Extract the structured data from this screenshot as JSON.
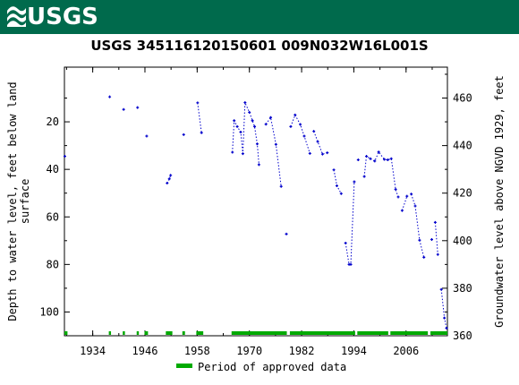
{
  "header": {
    "logo_text": "USGS",
    "background_color": "#006a4c"
  },
  "chart_data": {
    "type": "scatter",
    "title": "USGS 345116120150601 009N032W16L001S",
    "ylabel_left": "Depth to water level, feet below land surface",
    "ylabel_left_lines": [
      "Depth to water level, feet below land",
      "surface"
    ],
    "ylabel_right": "Groundwater level above NGVD 1929, feet",
    "xlim": [
      1927.5,
      2015.5
    ],
    "ylim_left": [
      110,
      -3
    ],
    "ylim_right": [
      360,
      473
    ],
    "x_ticks": [
      1934,
      1946,
      1958,
      1970,
      1982,
      1994,
      2006
    ],
    "x_tick_labels": [
      "1934",
      "1946",
      "1958",
      "1970",
      "1982",
      "1994",
      "2006"
    ],
    "y_left_ticks": [
      20,
      40,
      60,
      80,
      100
    ],
    "y_left_tick_labels": [
      "20",
      "40",
      "60",
      "80",
      "100"
    ],
    "y_right_ticks": [
      360,
      380,
      400,
      420,
      440,
      460
    ],
    "y_right_tick_labels": [
      "360",
      "380",
      "400",
      "420",
      "440",
      "460"
    ],
    "series": [
      {
        "color": "#0000cc",
        "points": [
          [
            1927.6,
            34.5
          ],
          [
            1937.9,
            9.5
          ],
          [
            1941.1,
            14.8
          ],
          [
            1944.3,
            14.0
          ],
          [
            1946.4,
            26.0
          ],
          [
            1951.1,
            45.8
          ],
          [
            1951.6,
            44.0
          ],
          [
            1951.9,
            42.5
          ],
          [
            1954.9,
            25.4
          ],
          [
            1958.1,
            12.0
          ],
          [
            1959.0,
            24.6
          ],
          [
            1966.1,
            32.8
          ],
          [
            1966.5,
            19.5
          ],
          [
            1967.2,
            22.0
          ],
          [
            1968.0,
            24.3
          ],
          [
            1968.5,
            33.4
          ],
          [
            1969.0,
            11.9
          ],
          [
            1970.0,
            16.0
          ],
          [
            1970.7,
            19.5
          ],
          [
            1971.2,
            22.0
          ],
          [
            1971.8,
            29.3
          ],
          [
            1972.2,
            38.0
          ],
          [
            1973.8,
            21.0
          ],
          [
            1974.9,
            18.2
          ],
          [
            1976.1,
            29.5
          ],
          [
            1977.3,
            47.2
          ],
          [
            1978.5,
            67.2
          ],
          [
            1979.5,
            22.0
          ],
          [
            1980.5,
            17.1
          ],
          [
            1981.7,
            21.1
          ],
          [
            1982.6,
            26.0
          ],
          [
            1983.9,
            33.3
          ],
          [
            1984.8,
            24.0
          ],
          [
            1985.7,
            28.3
          ],
          [
            1986.8,
            33.6
          ],
          [
            1987.9,
            33.0
          ],
          [
            1989.4,
            40.2
          ],
          [
            1990.1,
            46.9
          ],
          [
            1991.1,
            50.2
          ],
          [
            1992.1,
            71.0
          ],
          [
            1992.9,
            80.0
          ],
          [
            1993.3,
            80.0
          ],
          [
            1994.1,
            45.2
          ],
          [
            1995.0,
            36.0
          ],
          [
            1996.4,
            43.0
          ],
          [
            1996.9,
            34.5
          ],
          [
            1997.8,
            35.5
          ],
          [
            1998.8,
            36.5
          ],
          [
            1999.7,
            32.7
          ],
          [
            2001.0,
            35.8
          ],
          [
            2001.8,
            36.0
          ],
          [
            2002.6,
            35.5
          ],
          [
            2003.6,
            48.4
          ],
          [
            2004.2,
            51.6
          ],
          [
            2005.1,
            57.3
          ],
          [
            2006.2,
            51.3
          ],
          [
            2007.2,
            50.4
          ],
          [
            2008.1,
            55.4
          ],
          [
            2009.1,
            69.8
          ],
          [
            2010.1,
            77.0
          ],
          [
            2011.9,
            69.5
          ],
          [
            2012.7,
            62.3
          ],
          [
            2013.3,
            75.8
          ],
          [
            2014.1,
            90.5
          ],
          [
            2014.8,
            102.5
          ],
          [
            2015.3,
            106.8
          ]
        ]
      }
    ],
    "connected_segments": [
      [
        [
          1951.1,
          45.8
        ],
        [
          1951.6,
          44.0
        ],
        [
          1951.9,
          42.5
        ]
      ],
      [
        [
          1958.1,
          12.0
        ],
        [
          1959.0,
          24.6
        ]
      ],
      [
        [
          1966.1,
          32.8
        ],
        [
          1966.5,
          19.5
        ],
        [
          1967.2,
          22.0
        ],
        [
          1968.0,
          24.3
        ],
        [
          1968.5,
          33.4
        ],
        [
          1969.0,
          11.9
        ],
        [
          1970.0,
          16.0
        ],
        [
          1970.7,
          19.5
        ],
        [
          1971.2,
          22.0
        ],
        [
          1971.8,
          29.3
        ],
        [
          1972.2,
          38.0
        ]
      ],
      [
        [
          1973.8,
          21.0
        ],
        [
          1974.9,
          18.2
        ],
        [
          1976.1,
          29.5
        ],
        [
          1977.3,
          47.2
        ]
      ],
      [
        [
          1979.5,
          22.0
        ],
        [
          1980.5,
          17.1
        ],
        [
          1981.7,
          21.1
        ],
        [
          1982.6,
          26.0
        ],
        [
          1983.9,
          33.3
        ]
      ],
      [
        [
          1984.8,
          24.0
        ],
        [
          1985.7,
          28.3
        ],
        [
          1986.8,
          33.6
        ],
        [
          1987.9,
          33.0
        ]
      ],
      [
        [
          1989.4,
          40.2
        ],
        [
          1990.1,
          46.9
        ],
        [
          1991.1,
          50.2
        ]
      ],
      [
        [
          1992.1,
          71.0
        ],
        [
          1992.9,
          80.0
        ],
        [
          1993.3,
          80.0
        ],
        [
          1994.1,
          45.2
        ]
      ],
      [
        [
          1996.4,
          43.0
        ],
        [
          1996.9,
          34.5
        ],
        [
          1997.8,
          35.5
        ],
        [
          1998.8,
          36.5
        ],
        [
          1999.7,
          32.7
        ],
        [
          2001.0,
          35.8
        ],
        [
          2001.8,
          36.0
        ],
        [
          2002.6,
          35.5
        ],
        [
          2003.6,
          48.4
        ],
        [
          2004.2,
          51.6
        ]
      ],
      [
        [
          2005.1,
          57.3
        ],
        [
          2006.2,
          51.3
        ]
      ],
      [
        [
          2007.2,
          50.4
        ],
        [
          2008.1,
          55.4
        ],
        [
          2009.1,
          69.8
        ],
        [
          2010.1,
          77.0
        ]
      ],
      [
        [
          2012.7,
          62.3
        ],
        [
          2013.3,
          75.8
        ]
      ],
      [
        [
          2014.1,
          90.5
        ],
        [
          2014.8,
          102.5
        ],
        [
          2015.3,
          106.8
        ]
      ]
    ],
    "approved_periods": [
      [
        1927.5,
        1928.2
      ],
      [
        1937.7,
        1938.2
      ],
      [
        1940.9,
        1941.4
      ],
      [
        1944.1,
        1944.6
      ],
      [
        1945.9,
        1946.7
      ],
      [
        1950.8,
        1952.3
      ],
      [
        1954.6,
        1955.2
      ],
      [
        1957.8,
        1959.4
      ],
      [
        1965.9,
        1978.6
      ],
      [
        1979.3,
        1994.3
      ],
      [
        1994.8,
        2001.9
      ],
      [
        2002.4,
        2011.0
      ],
      [
        2011.6,
        2015.5
      ]
    ],
    "approved_color": "#00aa00",
    "legend": {
      "label": "Period of approved data",
      "placement": "bottom"
    },
    "grid": false
  }
}
